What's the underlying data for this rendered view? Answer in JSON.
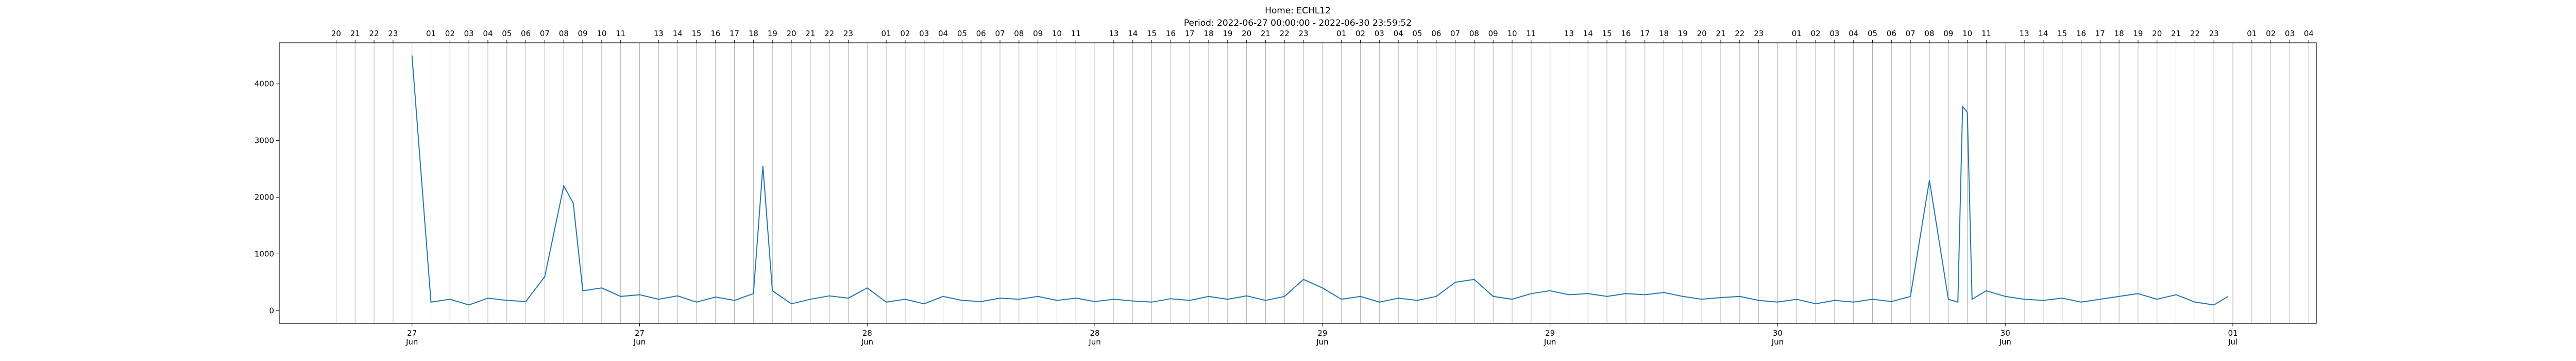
{
  "chart_data": {
    "type": "line",
    "title": "Home: ECHL12",
    "subtitle": "Period: 2022-06-27 00:00:00 - 2022-06-30 23:59:52",
    "color": "#1f77b4",
    "x": [
      "2022-06-27 00:00",
      "2022-06-27 01:00",
      "2022-06-27 02:00",
      "2022-06-27 03:00",
      "2022-06-27 04:00",
      "2022-06-27 05:00",
      "2022-06-27 06:00",
      "2022-06-27 07:00",
      "2022-06-27 08:00",
      "2022-06-27 08:30",
      "2022-06-27 09:00",
      "2022-06-27 10:00",
      "2022-06-27 11:00",
      "2022-06-27 12:00",
      "2022-06-27 13:00",
      "2022-06-27 14:00",
      "2022-06-27 15:00",
      "2022-06-27 16:00",
      "2022-06-27 17:00",
      "2022-06-27 18:00",
      "2022-06-27 18:30",
      "2022-06-27 19:00",
      "2022-06-27 20:00",
      "2022-06-27 21:00",
      "2022-06-27 22:00",
      "2022-06-27 23:00",
      "2022-06-28 00:00",
      "2022-06-28 01:00",
      "2022-06-28 02:00",
      "2022-06-28 03:00",
      "2022-06-28 04:00",
      "2022-06-28 05:00",
      "2022-06-28 06:00",
      "2022-06-28 07:00",
      "2022-06-28 08:00",
      "2022-06-28 09:00",
      "2022-06-28 10:00",
      "2022-06-28 11:00",
      "2022-06-28 12:00",
      "2022-06-28 13:00",
      "2022-06-28 14:00",
      "2022-06-28 15:00",
      "2022-06-28 16:00",
      "2022-06-28 17:00",
      "2022-06-28 18:00",
      "2022-06-28 19:00",
      "2022-06-28 20:00",
      "2022-06-28 21:00",
      "2022-06-28 22:00",
      "2022-06-28 23:00",
      "2022-06-29 00:00",
      "2022-06-29 01:00",
      "2022-06-29 02:00",
      "2022-06-29 03:00",
      "2022-06-29 04:00",
      "2022-06-29 05:00",
      "2022-06-29 06:00",
      "2022-06-29 07:00",
      "2022-06-29 08:00",
      "2022-06-29 09:00",
      "2022-06-29 10:00",
      "2022-06-29 11:00",
      "2022-06-29 12:00",
      "2022-06-29 13:00",
      "2022-06-29 14:00",
      "2022-06-29 15:00",
      "2022-06-29 16:00",
      "2022-06-29 17:00",
      "2022-06-29 18:00",
      "2022-06-29 19:00",
      "2022-06-29 20:00",
      "2022-06-29 21:00",
      "2022-06-29 22:00",
      "2022-06-29 23:00",
      "2022-06-30 00:00",
      "2022-06-30 01:00",
      "2022-06-30 02:00",
      "2022-06-30 03:00",
      "2022-06-30 04:00",
      "2022-06-30 05:00",
      "2022-06-30 06:00",
      "2022-06-30 07:00",
      "2022-06-30 08:00",
      "2022-06-30 09:00",
      "2022-06-30 09:30",
      "2022-06-30 09:45",
      "2022-06-30 10:00",
      "2022-06-30 10:15",
      "2022-06-30 11:00",
      "2022-06-30 12:00",
      "2022-06-30 13:00",
      "2022-06-30 14:00",
      "2022-06-30 15:00",
      "2022-06-30 16:00",
      "2022-06-30 17:00",
      "2022-06-30 18:00",
      "2022-06-30 19:00",
      "2022-06-30 20:00",
      "2022-06-30 21:00",
      "2022-06-30 22:00",
      "2022-06-30 23:00",
      "2022-06-30 23:45"
    ],
    "values": [
      4500,
      150,
      200,
      100,
      220,
      180,
      160,
      600,
      2200,
      1900,
      350,
      400,
      250,
      280,
      200,
      260,
      150,
      240,
      180,
      300,
      2550,
      350,
      120,
      200,
      260,
      220,
      400,
      150,
      200,
      120,
      250,
      180,
      160,
      220,
      200,
      250,
      180,
      220,
      160,
      200,
      170,
      150,
      210,
      180,
      250,
      200,
      260,
      180,
      250,
      550,
      400,
      200,
      250,
      150,
      220,
      180,
      250,
      500,
      550,
      250,
      200,
      300,
      350,
      280,
      300,
      250,
      300,
      280,
      320,
      250,
      200,
      230,
      250,
      180,
      150,
      200,
      120,
      180,
      150,
      200,
      160,
      250,
      2300,
      200,
      150,
      3600,
      3500,
      200,
      350,
      250,
      200,
      180,
      220,
      150,
      200,
      250,
      300,
      200,
      280,
      150,
      100,
      250
    ],
    "xlim": [
      "2022-06-26 17:00",
      "2022-07-01 04:24"
    ],
    "xticks": [
      {
        "value": "2022-06-27 00:00",
        "label": "27 Jun"
      },
      {
        "value": "2022-06-27 12:00",
        "label": "27 Jun"
      },
      {
        "value": "2022-06-28 00:00",
        "label": "28 Jun"
      },
      {
        "value": "2022-06-28 12:00",
        "label": "28 Jun"
      },
      {
        "value": "2022-06-29 00:00",
        "label": "29 Jun"
      },
      {
        "value": "2022-06-29 12:00",
        "label": "29 Jun"
      },
      {
        "value": "2022-06-30 00:00",
        "label": "30 Jun"
      },
      {
        "value": "2022-06-30 12:00",
        "label": "30 Jun"
      },
      {
        "value": "2022-07-01 00:00",
        "label": "01 Jul"
      }
    ],
    "top_ticks": [
      {
        "value": "2022-06-26 20:00",
        "label": "20"
      },
      {
        "value": "2022-06-26 21:00",
        "label": "21"
      },
      {
        "value": "2022-06-26 22:00",
        "label": "22"
      },
      {
        "value": "2022-06-26 23:00",
        "label": "23"
      },
      {
        "value": "2022-06-27 01:00",
        "label": "01"
      },
      {
        "value": "2022-06-27 02:00",
        "label": "02"
      },
      {
        "value": "2022-06-27 03:00",
        "label": "03"
      },
      {
        "value": "2022-06-27 04:00",
        "label": "04"
      },
      {
        "value": "2022-06-27 05:00",
        "label": "05"
      },
      {
        "value": "2022-06-27 06:00",
        "label": "06"
      },
      {
        "value": "2022-06-27 07:00",
        "label": "07"
      },
      {
        "value": "2022-06-27 08:00",
        "label": "08"
      },
      {
        "value": "2022-06-27 09:00",
        "label": "09"
      },
      {
        "value": "2022-06-27 10:00",
        "label": "10"
      },
      {
        "value": "2022-06-27 11:00",
        "label": "11"
      },
      {
        "value": "2022-06-27 13:00",
        "label": "13"
      },
      {
        "value": "2022-06-27 14:00",
        "label": "14"
      },
      {
        "value": "2022-06-27 15:00",
        "label": "15"
      },
      {
        "value": "2022-06-27 16:00",
        "label": "16"
      },
      {
        "value": "2022-06-27 17:00",
        "label": "17"
      },
      {
        "value": "2022-06-27 18:00",
        "label": "18"
      },
      {
        "value": "2022-06-27 19:00",
        "label": "19"
      },
      {
        "value": "2022-06-27 20:00",
        "label": "20"
      },
      {
        "value": "2022-06-27 21:00",
        "label": "21"
      },
      {
        "value": "2022-06-27 22:00",
        "label": "22"
      },
      {
        "value": "2022-06-27 23:00",
        "label": "23"
      },
      {
        "value": "2022-06-28 01:00",
        "label": "01"
      },
      {
        "value": "2022-06-28 02:00",
        "label": "02"
      },
      {
        "value": "2022-06-28 03:00",
        "label": "03"
      },
      {
        "value": "2022-06-28 04:00",
        "label": "04"
      },
      {
        "value": "2022-06-28 05:00",
        "label": "05"
      },
      {
        "value": "2022-06-28 06:00",
        "label": "06"
      },
      {
        "value": "2022-06-28 07:00",
        "label": "07"
      },
      {
        "value": "2022-06-28 08:00",
        "label": "08"
      },
      {
        "value": "2022-06-28 09:00",
        "label": "09"
      },
      {
        "value": "2022-06-28 10:00",
        "label": "10"
      },
      {
        "value": "2022-06-28 11:00",
        "label": "11"
      },
      {
        "value": "2022-06-28 13:00",
        "label": "13"
      },
      {
        "value": "2022-06-28 14:00",
        "label": "14"
      },
      {
        "value": "2022-06-28 15:00",
        "label": "15"
      },
      {
        "value": "2022-06-28 16:00",
        "label": "16"
      },
      {
        "value": "2022-06-28 17:00",
        "label": "17"
      },
      {
        "value": "2022-06-28 18:00",
        "label": "18"
      },
      {
        "value": "2022-06-28 19:00",
        "label": "19"
      },
      {
        "value": "2022-06-28 20:00",
        "label": "20"
      },
      {
        "value": "2022-06-28 21:00",
        "label": "21"
      },
      {
        "value": "2022-06-28 22:00",
        "label": "22"
      },
      {
        "value": "2022-06-28 23:00",
        "label": "23"
      },
      {
        "value": "2022-06-29 01:00",
        "label": "01"
      },
      {
        "value": "2022-06-29 02:00",
        "label": "02"
      },
      {
        "value": "2022-06-29 03:00",
        "label": "03"
      },
      {
        "value": "2022-06-29 04:00",
        "label": "04"
      },
      {
        "value": "2022-06-29 05:00",
        "label": "05"
      },
      {
        "value": "2022-06-29 06:00",
        "label": "06"
      },
      {
        "value": "2022-06-29 07:00",
        "label": "07"
      },
      {
        "value": "2022-06-29 08:00",
        "label": "08"
      },
      {
        "value": "2022-06-29 09:00",
        "label": "09"
      },
      {
        "value": "2022-06-29 10:00",
        "label": "10"
      },
      {
        "value": "2022-06-29 11:00",
        "label": "11"
      },
      {
        "value": "2022-06-29 13:00",
        "label": "13"
      },
      {
        "value": "2022-06-29 14:00",
        "label": "14"
      },
      {
        "value": "2022-06-29 15:00",
        "label": "15"
      },
      {
        "value": "2022-06-29 16:00",
        "label": "16"
      },
      {
        "value": "2022-06-29 17:00",
        "label": "17"
      },
      {
        "value": "2022-06-29 18:00",
        "label": "18"
      },
      {
        "value": "2022-06-29 19:00",
        "label": "19"
      },
      {
        "value": "2022-06-29 20:00",
        "label": "20"
      },
      {
        "value": "2022-06-29 21:00",
        "label": "21"
      },
      {
        "value": "2022-06-29 22:00",
        "label": "22"
      },
      {
        "value": "2022-06-29 23:00",
        "label": "23"
      },
      {
        "value": "2022-06-30 01:00",
        "label": "01"
      },
      {
        "value": "2022-06-30 02:00",
        "label": "02"
      },
      {
        "value": "2022-06-30 03:00",
        "label": "03"
      },
      {
        "value": "2022-06-30 04:00",
        "label": "04"
      },
      {
        "value": "2022-06-30 05:00",
        "label": "05"
      },
      {
        "value": "2022-06-30 06:00",
        "label": "06"
      },
      {
        "value": "2022-06-30 07:00",
        "label": "07"
      },
      {
        "value": "2022-06-30 08:00",
        "label": "08"
      },
      {
        "value": "2022-06-30 09:00",
        "label": "09"
      },
      {
        "value": "2022-06-30 10:00",
        "label": "10"
      },
      {
        "value": "2022-06-30 11:00",
        "label": "11"
      },
      {
        "value": "2022-06-30 13:00",
        "label": "13"
      },
      {
        "value": "2022-06-30 14:00",
        "label": "14"
      },
      {
        "value": "2022-06-30 15:00",
        "label": "15"
      },
      {
        "value": "2022-06-30 16:00",
        "label": "16"
      },
      {
        "value": "2022-06-30 17:00",
        "label": "17"
      },
      {
        "value": "2022-06-30 18:00",
        "label": "18"
      },
      {
        "value": "2022-06-30 19:00",
        "label": "19"
      },
      {
        "value": "2022-06-30 20:00",
        "label": "20"
      },
      {
        "value": "2022-06-30 21:00",
        "label": "21"
      },
      {
        "value": "2022-06-30 22:00",
        "label": "22"
      },
      {
        "value": "2022-06-30 23:00",
        "label": "23"
      },
      {
        "value": "2022-07-01 01:00",
        "label": "01"
      },
      {
        "value": "2022-07-01 02:00",
        "label": "02"
      },
      {
        "value": "2022-07-01 03:00",
        "label": "03"
      },
      {
        "value": "2022-07-01 04:00",
        "label": "04"
      }
    ],
    "ylim": [
      -225,
      4725
    ],
    "yticks": [
      0,
      1000,
      2000,
      3000,
      4000
    ],
    "grid": true
  }
}
